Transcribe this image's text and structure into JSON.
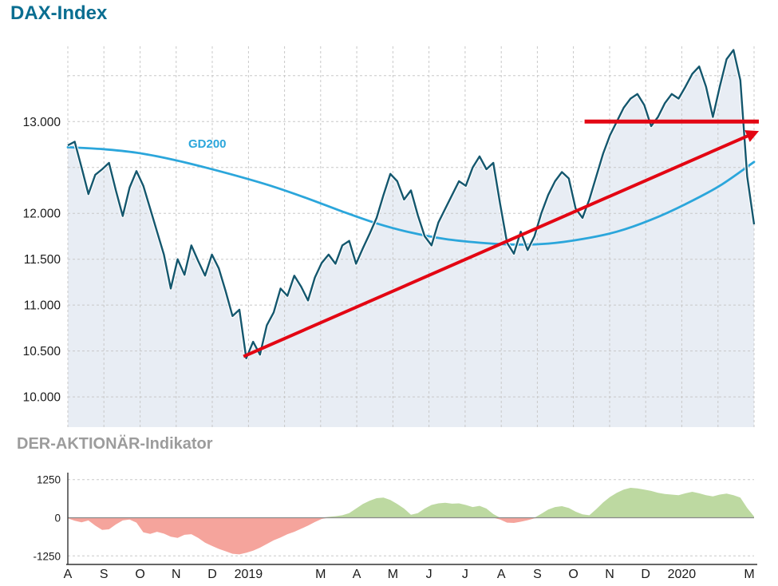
{
  "colors": {
    "title": "#0a6e91",
    "indicator_title": "#9c9c9c",
    "grid": "#c8c8c8",
    "axis": "#333333",
    "text": "#1a1a1a",
    "background": "#ffffff"
  },
  "chart_data": [
    {
      "type": "line",
      "title": "DAX-Index",
      "x_axis": {
        "range": "Aug 2018 - Mar 2020",
        "ticks": [
          {
            "pos": 0.0,
            "label": "A"
          },
          {
            "pos": 0.0526,
            "label": "S"
          },
          {
            "pos": 0.1053,
            "label": "O"
          },
          {
            "pos": 0.1579,
            "label": "N"
          },
          {
            "pos": 0.2105,
            "label": "D"
          },
          {
            "pos": 0.2632,
            "label": "2019"
          },
          {
            "pos": 0.3684,
            "label": "M"
          },
          {
            "pos": 0.4211,
            "label": "A"
          },
          {
            "pos": 0.4737,
            "label": "M"
          },
          {
            "pos": 0.5263,
            "label": "J"
          },
          {
            "pos": 0.5789,
            "label": "J"
          },
          {
            "pos": 0.6316,
            "label": "A"
          },
          {
            "pos": 0.6842,
            "label": "S"
          },
          {
            "pos": 0.7368,
            "label": "O"
          },
          {
            "pos": 0.7895,
            "label": "N"
          },
          {
            "pos": 0.8421,
            "label": "D"
          },
          {
            "pos": 0.8947,
            "label": "2020"
          },
          {
            "pos": 0.993,
            "label": "M"
          }
        ],
        "month_gridlines": [
          0,
          0.0526,
          0.1053,
          0.1579,
          0.2105,
          0.2632,
          0.3158,
          0.3684,
          0.4211,
          0.4737,
          0.5263,
          0.5789,
          0.6316,
          0.6842,
          0.7368,
          0.7895,
          0.8421,
          0.8947,
          0.9474,
          1
        ]
      },
      "y_axis": {
        "lim": [
          9670,
          13820
        ],
        "ticks": [
          {
            "value": 13000,
            "label": "13.000"
          },
          {
            "value": 12000,
            "label": "12.000"
          },
          {
            "value": 11500,
            "label": "11.500"
          },
          {
            "value": 11000,
            "label": "11.000"
          },
          {
            "value": 10500,
            "label": "10.500"
          },
          {
            "value": 10000,
            "label": "10.000"
          }
        ],
        "unlabeled_gridlines": [
          13500,
          12500
        ]
      },
      "series": [
        {
          "name": "DAX",
          "color": "#14576e",
          "fill": "#e8edf4",
          "values": [
            12740,
            12780,
            12500,
            12210,
            12420,
            12480,
            12550,
            12250,
            11970,
            12280,
            12460,
            12300,
            12050,
            11800,
            11550,
            11180,
            11500,
            11330,
            11650,
            11480,
            11320,
            11550,
            11400,
            11150,
            10880,
            10950,
            10420,
            10600,
            10460,
            10780,
            10920,
            11180,
            11100,
            11320,
            11200,
            11050,
            11300,
            11460,
            11550,
            11450,
            11650,
            11700,
            11450,
            11620,
            11780,
            11950,
            12200,
            12430,
            12350,
            12150,
            12250,
            11980,
            11750,
            11650,
            11900,
            12050,
            12200,
            12350,
            12300,
            12500,
            12620,
            12480,
            12550,
            12100,
            11680,
            11560,
            11800,
            11600,
            11750,
            12000,
            12200,
            12350,
            12450,
            12380,
            12050,
            11950,
            12150,
            12400,
            12650,
            12850,
            13000,
            13150,
            13250,
            13300,
            13180,
            12950,
            13050,
            13200,
            13300,
            13250,
            13380,
            13520,
            13600,
            13380,
            13050,
            13380,
            13680,
            13780,
            13450,
            12400,
            11880
          ]
        },
        {
          "name": "GD200",
          "color": "#2ba6db",
          "x": [
            0,
            0.05,
            0.1,
            0.15,
            0.2,
            0.25,
            0.3,
            0.35,
            0.4,
            0.45,
            0.5,
            0.55,
            0.6,
            0.65,
            0.7,
            0.75,
            0.8,
            0.85,
            0.9,
            0.95,
            1
          ],
          "values": [
            12720,
            12700,
            12660,
            12590,
            12500,
            12400,
            12290,
            12160,
            12020,
            11890,
            11790,
            11720,
            11680,
            11660,
            11670,
            11720,
            11800,
            11930,
            12100,
            12300,
            12560
          ]
        }
      ],
      "trendline": {
        "color": "#e30613",
        "from": {
          "x": 0.256,
          "value": 10440
        },
        "to": {
          "x": 1.002,
          "value": 12880
        },
        "arrow": true
      },
      "resistance_line": {
        "color": "#e30613",
        "value": 13000,
        "x_from": 0.753,
        "x_to": 1.007
      }
    },
    {
      "type": "area",
      "title": "DER-AKTIONÄR-Indikator",
      "positive_color": "#bdd9a1",
      "negative_color": "#f5a49c",
      "y_axis": {
        "lim": [
          -1400,
          1400
        ],
        "ticks": [
          {
            "value": 1250,
            "label": "1250"
          },
          {
            "value": 0,
            "label": "0"
          },
          {
            "value": -1250,
            "label": "-1250"
          }
        ]
      },
      "values": [
        -20,
        -100,
        -150,
        -90,
        -260,
        -400,
        -380,
        -220,
        -90,
        -60,
        -160,
        -480,
        -530,
        -460,
        -520,
        -620,
        -660,
        -560,
        -540,
        -660,
        -820,
        -920,
        -1020,
        -1100,
        -1180,
        -1200,
        -1150,
        -1080,
        -980,
        -860,
        -740,
        -650,
        -540,
        -460,
        -360,
        -260,
        -140,
        -40,
        30,
        50,
        80,
        150,
        300,
        450,
        560,
        640,
        660,
        580,
        450,
        300,
        100,
        150,
        300,
        420,
        470,
        490,
        460,
        470,
        420,
        350,
        390,
        300,
        120,
        -60,
        -160,
        -170,
        -130,
        -80,
        -20,
        130,
        270,
        350,
        380,
        320,
        200,
        110,
        80,
        280,
        500,
        680,
        820,
        920,
        980,
        960,
        920,
        880,
        820,
        780,
        760,
        740,
        800,
        850,
        800,
        740,
        700,
        760,
        790,
        740,
        660,
        320,
        40
      ]
    }
  ]
}
